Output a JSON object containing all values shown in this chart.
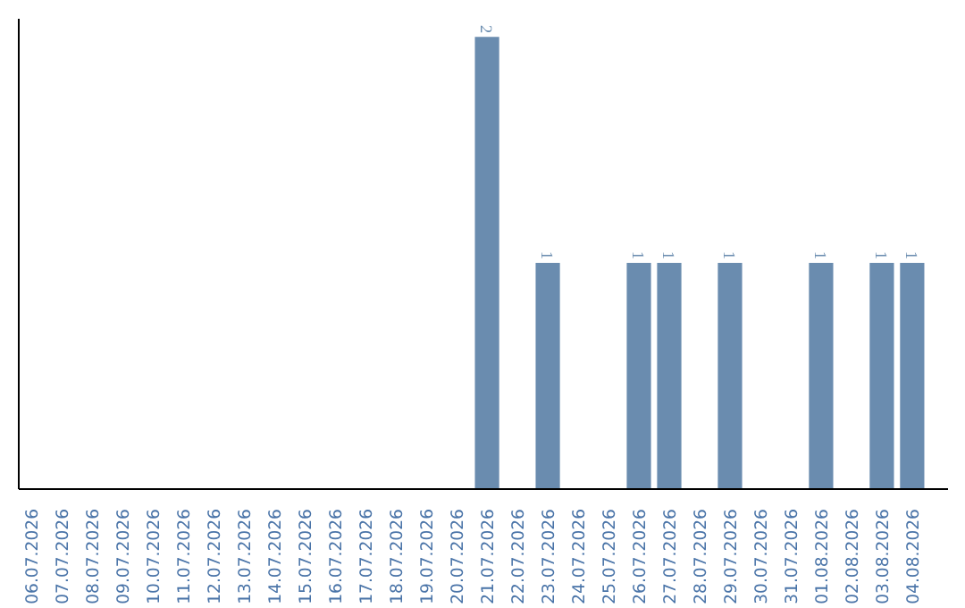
{
  "chart_data": {
    "type": "bar",
    "categories": [
      "06.07.2026",
      "07.07.2026",
      "08.07.2026",
      "09.07.2026",
      "10.07.2026",
      "11.07.2026",
      "12.07.2026",
      "13.07.2026",
      "14.07.2026",
      "15.07.2026",
      "16.07.2026",
      "17.07.2026",
      "18.07.2026",
      "19.07.2026",
      "20.07.2026",
      "21.07.2026",
      "22.07.2026",
      "23.07.2026",
      "24.07.2026",
      "25.07.2026",
      "26.07.2026",
      "27.07.2026",
      "28.07.2026",
      "29.07.2026",
      "30.07.2026",
      "31.07.2026",
      "01.08.2026",
      "02.08.2026",
      "03.08.2026",
      "04.08.2026"
    ],
    "values": [
      null,
      null,
      null,
      null,
      null,
      null,
      null,
      null,
      null,
      null,
      null,
      null,
      null,
      null,
      null,
      2,
      null,
      1,
      null,
      null,
      1,
      1,
      null,
      1,
      null,
      null,
      1,
      null,
      1,
      1
    ],
    "color": "#6a8caf",
    "data_labels": true,
    "grid": false,
    "tick_labels": "x"
  }
}
